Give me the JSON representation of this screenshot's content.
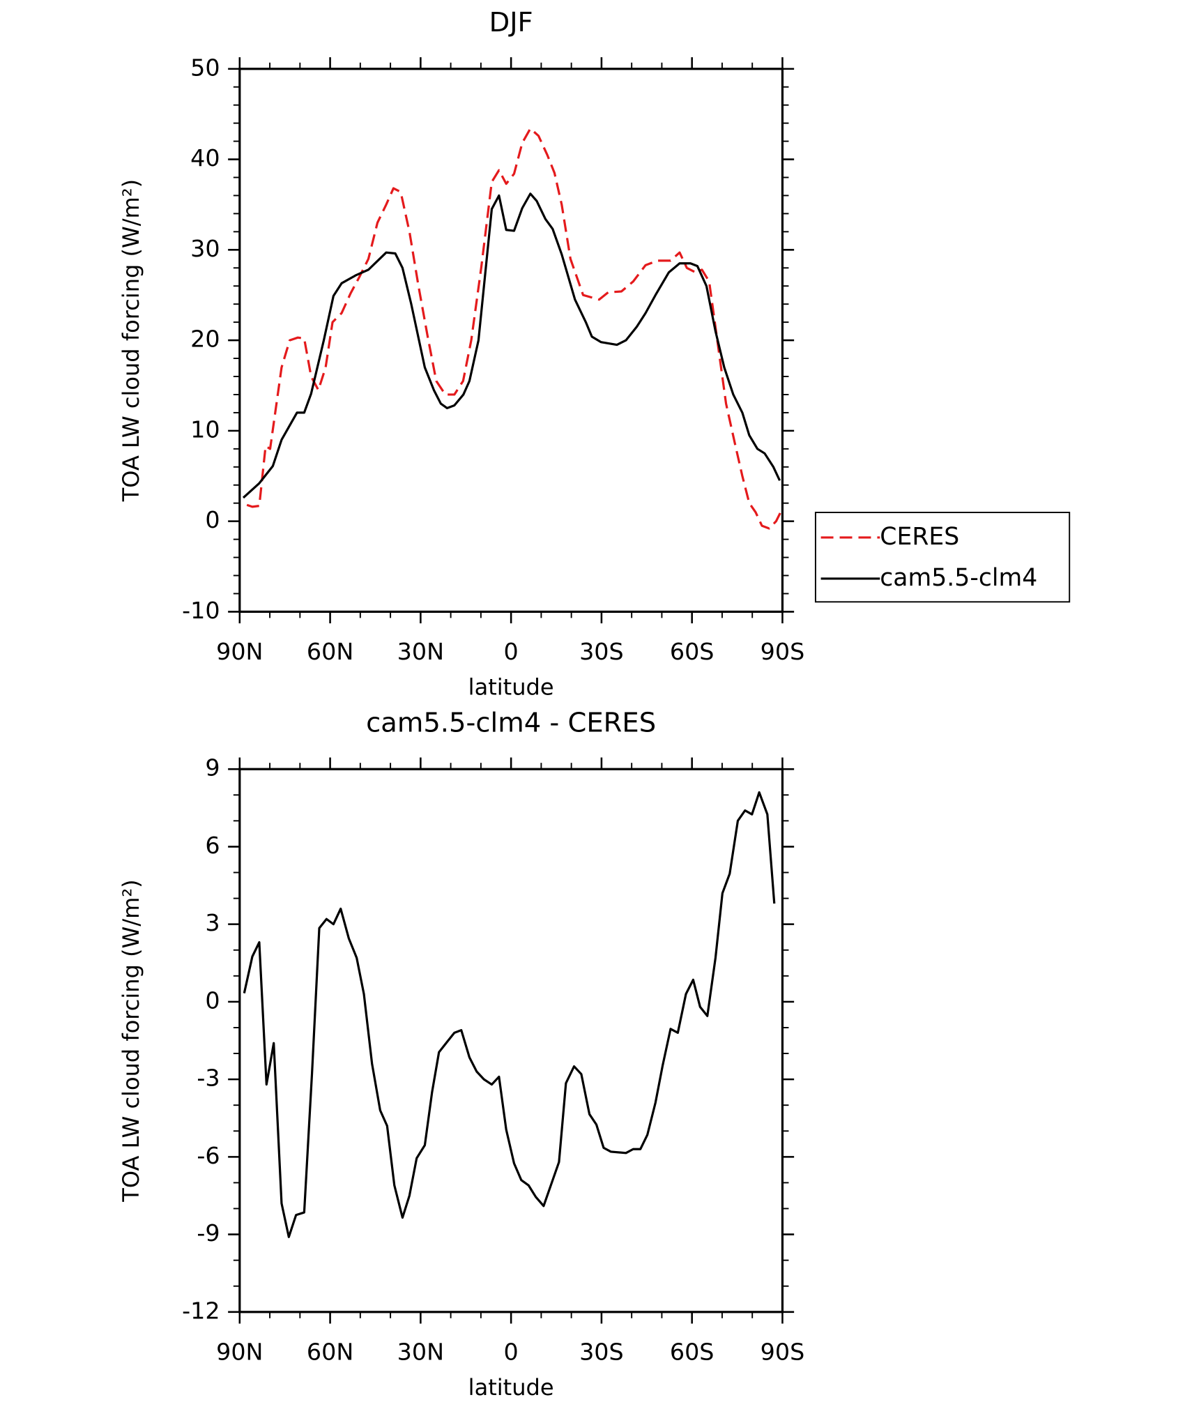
{
  "chart_data": [
    {
      "type": "line",
      "title": "DJF",
      "xlabel": "latitude",
      "ylabel": "TOA LW cloud forcing (W/m²)",
      "xlim": [
        90,
        -90
      ],
      "xticks": [
        {
          "value": 90,
          "label": "90N"
        },
        {
          "value": 60,
          "label": "60N"
        },
        {
          "value": 30,
          "label": "30N"
        },
        0,
        {
          "value": -30,
          "label": "30S"
        },
        {
          "value": -60,
          "label": "60S"
        },
        {
          "value": -90,
          "label": "90S"
        }
      ],
      "xminorticks": [
        80,
        70,
        50,
        40,
        20,
        10,
        -10,
        -20,
        -40,
        -50,
        -70,
        -80
      ],
      "ylim": [
        -10,
        50
      ],
      "yticks": [
        -10,
        0,
        10,
        20,
        30,
        40,
        50
      ],
      "yminorticks": [
        -8,
        -6,
        -4,
        -2,
        2,
        4,
        6,
        8,
        12,
        14,
        16,
        18,
        22,
        24,
        26,
        28,
        32,
        34,
        36,
        38,
        42,
        44,
        46,
        48
      ],
      "legend": "right",
      "series": [
        {
          "name": "CERES",
          "color": "#e41a1c",
          "linestyle": "dashed",
          "x": [
            87.6,
            85.8,
            83.5,
            81.4,
            79.9,
            76.1,
            73.4,
            70.7,
            68.6,
            66.3,
            63.9,
            61.5,
            59.2,
            56.2,
            53.2,
            50.3,
            47.3,
            44.3,
            41.4,
            39.0,
            36.6,
            33.7,
            30.7,
            27.7,
            24.8,
            21.8,
            18.8,
            15.9,
            13.2,
            9.9,
            6.4,
            4.0,
            1.6,
            -1.0,
            -3.7,
            -6.4,
            -9.1,
            -12.0,
            -14.4,
            -16.8,
            -19.7,
            -23.9,
            -29.2,
            -32.2,
            -36.6,
            -40.5,
            -44.6,
            -48.5,
            -52.9,
            -55.9,
            -58.3,
            -61.2,
            -63.3,
            -65.7,
            -68.4,
            -71.3,
            -74.3,
            -76.7,
            -79.0,
            -81.1,
            -83.2,
            -85.6,
            -87.9,
            -89.4
          ],
          "values": [
            1.8,
            1.6,
            1.7,
            8.3,
            8.0,
            17,
            20,
            20.3,
            20.2,
            16,
            14.5,
            17,
            22,
            23,
            25.2,
            27,
            29,
            33,
            35,
            36.8,
            36.4,
            32,
            26,
            20.5,
            15.5,
            14,
            14,
            15.5,
            20,
            28,
            37.5,
            38.8,
            37.3,
            38.4,
            41.8,
            43.4,
            42.6,
            40.5,
            38.5,
            35,
            29,
            25,
            24.5,
            25.3,
            25.4,
            26.5,
            28.3,
            28.8,
            28.8,
            29.7,
            28,
            27.5,
            27.8,
            26.5,
            20,
            13,
            8.5,
            5,
            2,
            1,
            -0.5,
            -0.8,
            0,
            1
          ]
        },
        {
          "name": "cam5.5-clm4",
          "color": "#000000",
          "linestyle": "solid",
          "x": [
            88.8,
            83.5,
            79.0,
            76.1,
            71.0,
            68.6,
            66.3,
            62.1,
            58.9,
            56.2,
            51.4,
            47.3,
            41.4,
            38.4,
            36.0,
            33.1,
            28.6,
            25.6,
            23.3,
            21.2,
            18.8,
            15.8,
            13.8,
            10.8,
            6.4,
            4.0,
            1.6,
            -1.0,
            -3.7,
            -6.4,
            -8.5,
            -11.4,
            -13.8,
            -16.8,
            -21.2,
            -24.8,
            -26.8,
            -29.8,
            -35.1,
            -38.1,
            -41.7,
            -44.6,
            -47.9,
            -52.3,
            -55.9,
            -59.5,
            -61.8,
            -64.8,
            -67.8,
            -70.7,
            -73.7,
            -76.7,
            -79.0,
            -81.7,
            -84.1,
            -87.0,
            -89.1
          ],
          "values": [
            2.6,
            4.2,
            6.1,
            9,
            12,
            12,
            14.1,
            20,
            24.9,
            26.3,
            27.2,
            27.8,
            29.7,
            29.6,
            28,
            24,
            17,
            14.5,
            13,
            12.5,
            12.8,
            14,
            15.5,
            20,
            34.5,
            36,
            32.2,
            32.1,
            34.6,
            36.2,
            35.4,
            33.4,
            32.3,
            29.5,
            24.5,
            22,
            20.4,
            19.8,
            19.5,
            20,
            21.5,
            23,
            25,
            27.5,
            28.5,
            28.5,
            28.2,
            26,
            21,
            17,
            14,
            12,
            9.5,
            8,
            7.5,
            6,
            4.5
          ]
        }
      ]
    },
    {
      "type": "line",
      "title": "cam5.5-clm4 - CERES",
      "xlabel": "latitude",
      "ylabel": "TOA LW cloud forcing (W/m²)",
      "xlim": [
        90,
        -90
      ],
      "xticks": [
        {
          "value": 90,
          "label": "90N"
        },
        {
          "value": 60,
          "label": "60N"
        },
        {
          "value": 30,
          "label": "30N"
        },
        0,
        {
          "value": -30,
          "label": "30S"
        },
        {
          "value": -60,
          "label": "60S"
        },
        {
          "value": -90,
          "label": "90S"
        }
      ],
      "xminorticks": [
        80,
        70,
        50,
        40,
        20,
        10,
        -10,
        -20,
        -40,
        -50,
        -70,
        -80
      ],
      "ylim": [
        -12,
        9
      ],
      "yticks": [
        -12,
        -9,
        -6,
        -3,
        0,
        3,
        6,
        9
      ],
      "yminorticks": [
        -11,
        -10,
        -8,
        -7,
        -5,
        -4,
        -2,
        -1,
        1,
        2,
        4,
        5,
        7,
        8
      ],
      "series": [
        {
          "color": "#000000",
          "linestyle": "solid",
          "x": [
            88.5,
            85.8,
            83.5,
            81.1,
            78.7,
            76.1,
            73.7,
            71.3,
            68.6,
            66.0,
            63.6,
            61.2,
            58.9,
            56.5,
            53.8,
            51.2,
            48.8,
            46.1,
            43.4,
            41.1,
            38.7,
            36.0,
            33.7,
            31.3,
            28.6,
            26.2,
            23.9,
            21.2,
            18.8,
            16.5,
            13.8,
            11.4,
            9.0,
            6.4,
            4.0,
            1.6,
            -1.0,
            -3.4,
            -5.8,
            -8.2,
            -10.8,
            -13.2,
            -15.9,
            -18.2,
            -20.9,
            -23.3,
            -26.0,
            -28.3,
            -30.7,
            -33.1,
            -38.1,
            -40.5,
            -42.9,
            -45.2,
            -47.9,
            -50.3,
            -52.9,
            -55.3,
            -58.0,
            -60.4,
            -62.7,
            -65.1,
            -67.8,
            -70.1,
            -72.5,
            -75.2,
            -77.6,
            -79.9,
            -82.3,
            -85.0,
            -87.3
          ],
          "values": [
            0.33,
            1.75,
            2.3,
            -3.2,
            -1.6,
            -7.8,
            -9.1,
            -8.25,
            -8.15,
            -2.75,
            2.85,
            3.2,
            3.0,
            3.6,
            2.45,
            1.7,
            0.3,
            -2.4,
            -4.2,
            -4.8,
            -7.1,
            -8.35,
            -7.5,
            -6.05,
            -5.55,
            -3.5,
            -1.95,
            -1.55,
            -1.2,
            -1.1,
            -2.15,
            -2.7,
            -3.0,
            -3.2,
            -2.9,
            -4.95,
            -6.25,
            -6.9,
            -7.1,
            -7.55,
            -7.9,
            -7.1,
            -6.2,
            -3.15,
            -2.5,
            -2.8,
            -4.35,
            -4.75,
            -5.65,
            -5.8,
            -5.85,
            -5.7,
            -5.7,
            -5.15,
            -3.9,
            -2.45,
            -1.05,
            -1.2,
            0.3,
            0.85,
            -0.2,
            -0.55,
            1.7,
            4.2,
            4.95,
            7.0,
            7.4,
            7.25,
            8.1,
            7.25,
            3.8
          ]
        }
      ]
    }
  ]
}
